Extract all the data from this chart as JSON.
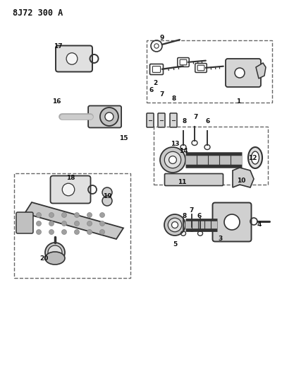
{
  "title": "8J72 300 A",
  "background_color": "#ffffff",
  "figsize": [
    4.0,
    5.33
  ],
  "dpi": 100,
  "line_color": "#333333",
  "title_fontsize": 8.5
}
